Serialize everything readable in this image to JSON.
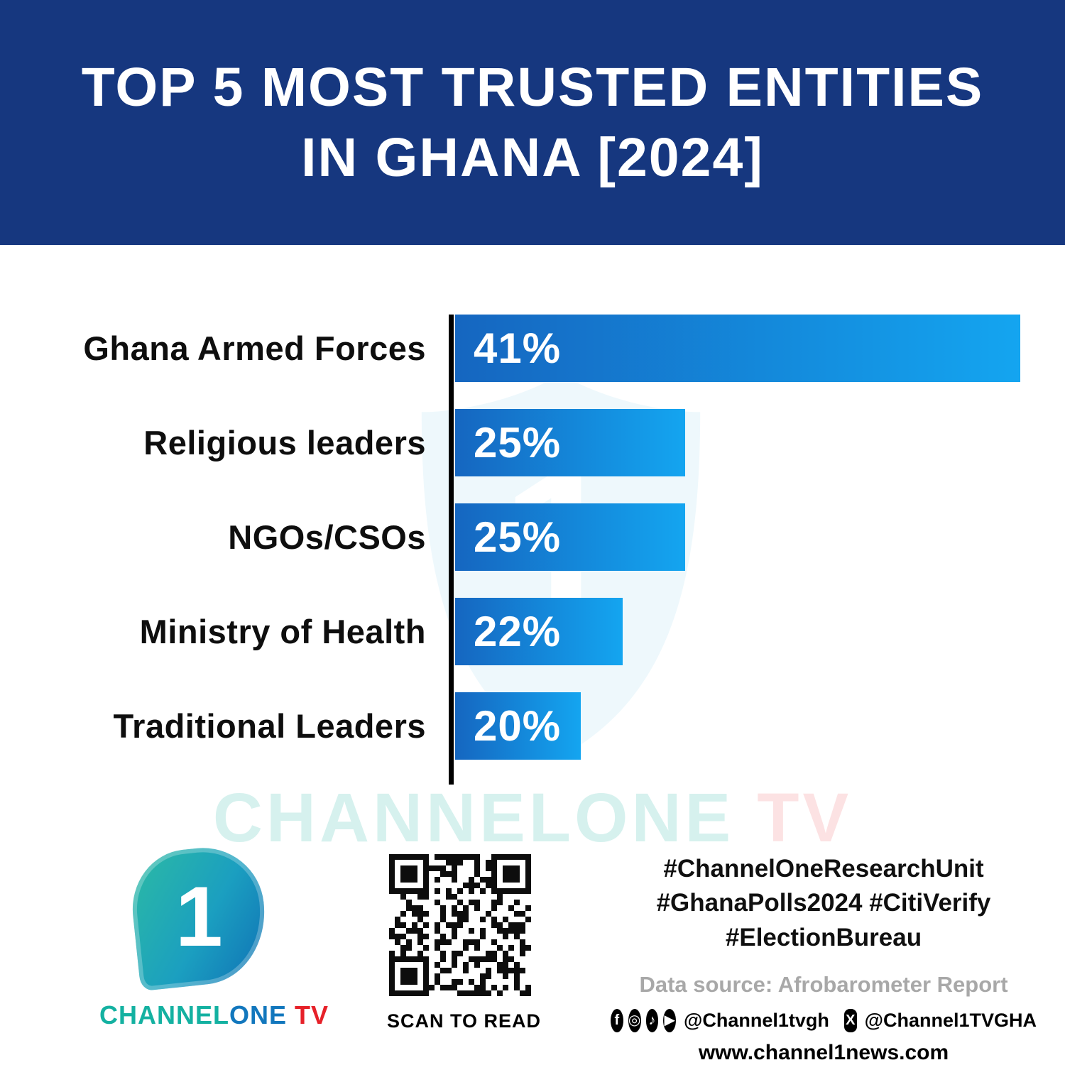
{
  "title": {
    "line1": "TOP 5 MOST TRUSTED ENTITIES",
    "line2": "IN GHANA [2024]"
  },
  "chart_data": {
    "type": "bar",
    "orientation": "horizontal",
    "title": "Top 5 Most Trusted Entities in Ghana [2024]",
    "categories": [
      "Ghana Armed Forces",
      "Religious leaders",
      "NGOs/CSOs",
      "Ministry of Health",
      "Traditional Leaders"
    ],
    "values": [
      41,
      25,
      25,
      22,
      20
    ],
    "value_labels": [
      "41%",
      "25%",
      "25%",
      "22%",
      "20%"
    ],
    "xlabel": "",
    "ylabel": "",
    "xlim": [
      14,
      41
    ],
    "grid": false,
    "legend": false,
    "bar_color_start": "#1566c0",
    "bar_color_end": "#14a5f0"
  },
  "watermark": {
    "main": "CHANNELONE",
    "tv": " TV"
  },
  "footer": {
    "logo": {
      "numeral": "1",
      "brand_channel": "CHANNEL",
      "brand_one": "ONE",
      "brand_tv": " TV"
    },
    "qr_caption": "SCAN TO READ",
    "hashtags": [
      "#ChannelOneResearchUnit",
      "#GhanaPolls2024 #CitiVerify",
      "#ElectionBureau"
    ],
    "data_source": "Data source: Afrobarometer Report",
    "social": {
      "handle1": "@Channel1tvgh",
      "handle2": "@Channel1TVGHA"
    },
    "website": "www.channel1news.com"
  },
  "icons": {
    "facebook": "f",
    "instagram": "◎",
    "tiktok": "♪",
    "youtube": "▶",
    "x": "X"
  },
  "colors": {
    "banner": "#16377f",
    "bar_start": "#1566c0",
    "bar_end": "#14a5f0",
    "teal": "#14b1a1",
    "blue": "#1277bd",
    "tv_red": "#e62129"
  }
}
